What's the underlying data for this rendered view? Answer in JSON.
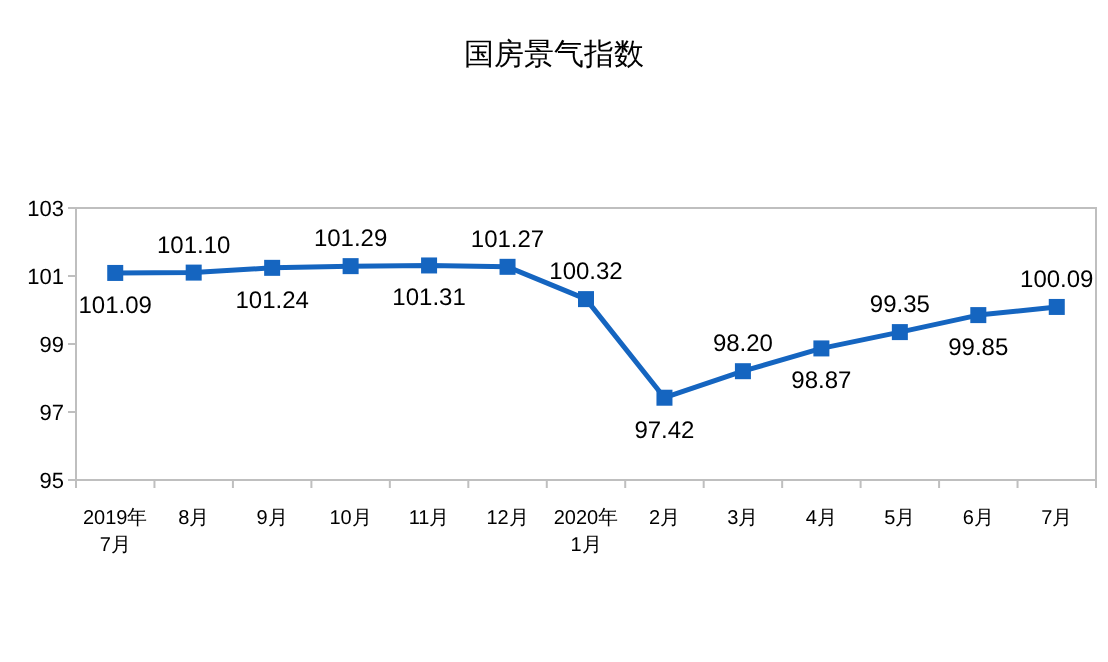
{
  "chart_data": {
    "type": "line",
    "title": "国房景气指数",
    "categories": [
      "2019年\n7月",
      "8月",
      "9月",
      "10月",
      "11月",
      "12月",
      "2020年\n1月",
      "2月",
      "3月",
      "4月",
      "5月",
      "6月",
      "7月"
    ],
    "series": [
      {
        "color": "#1565c0",
        "values": [
          101.09,
          101.1,
          101.24,
          101.29,
          101.31,
          101.27,
          100.32,
          97.42,
          98.2,
          98.87,
          99.35,
          99.85,
          100.09
        ],
        "value_labels": [
          "101.09",
          "101.10",
          "101.24",
          "101.29",
          "101.31",
          "101.27",
          "100.32",
          "97.42",
          "98.20",
          "98.87",
          "99.35",
          "99.85",
          "100.09"
        ]
      }
    ],
    "ylim": [
      95,
      103
    ],
    "yticks": [
      95,
      97,
      99,
      101,
      103
    ],
    "grid": false,
    "marker": "square",
    "line_style": "solid"
  }
}
